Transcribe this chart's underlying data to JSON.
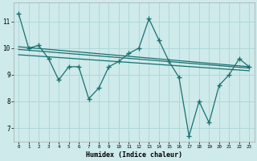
{
  "x_values": [
    0,
    1,
    2,
    3,
    4,
    5,
    6,
    7,
    8,
    9,
    10,
    11,
    12,
    13,
    14,
    15,
    16,
    17,
    18,
    19,
    20,
    21,
    22,
    23
  ],
  "line_main": [
    11.3,
    10.0,
    10.1,
    9.6,
    8.8,
    9.3,
    9.3,
    8.1,
    8.5,
    9.3,
    9.5,
    9.8,
    10.0,
    11.1,
    10.3,
    9.5,
    8.9,
    6.7,
    8.0,
    7.2,
    8.6,
    9.0,
    9.6,
    9.3
  ],
  "trend1_x": [
    0,
    23
  ],
  "trend1_y": [
    10.05,
    9.3
  ],
  "trend2_x": [
    0,
    23
  ],
  "trend2_y": [
    9.95,
    9.25
  ],
  "trend3_x": [
    0,
    23
  ],
  "trend3_y": [
    9.75,
    9.15
  ],
  "bg_color": "#ceeaea",
  "line_color": "#1a7070",
  "grid_color": "#b0d8d8",
  "xlabel": "Humidex (Indice chaleur)",
  "yticks": [
    7,
    8,
    9,
    10,
    11
  ],
  "xticks": [
    0,
    1,
    2,
    3,
    4,
    5,
    6,
    7,
    8,
    9,
    10,
    11,
    12,
    13,
    14,
    15,
    16,
    17,
    18,
    19,
    20,
    21,
    22,
    23
  ],
  "ylim": [
    6.5,
    11.7
  ],
  "xlim": [
    -0.5,
    23.5
  ]
}
